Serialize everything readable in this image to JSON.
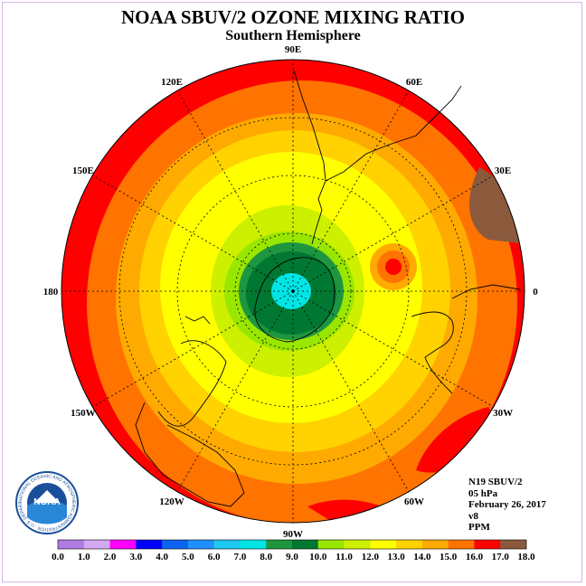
{
  "title": "NOAA SBUV/2 OZONE MIXING RATIO",
  "subtitle": "Southern Hemisphere",
  "longitude_labels": [
    {
      "text": "90W",
      "lon": -90
    },
    {
      "text": "60W",
      "lon": -60
    },
    {
      "text": "120W",
      "lon": -120
    },
    {
      "text": "30W",
      "lon": -30
    },
    {
      "text": "150W",
      "lon": -150
    },
    {
      "text": "0",
      "lon": 0
    },
    {
      "text": "180",
      "lon": 180
    },
    {
      "text": "30E",
      "lon": 30
    },
    {
      "text": "150E",
      "lon": 150
    },
    {
      "text": "60E",
      "lon": 60
    },
    {
      "text": "120E",
      "lon": 120
    },
    {
      "text": "90E",
      "lon": 90
    }
  ],
  "info": {
    "satellite": "N19 SBUV/2",
    "pressure": "05 hPa",
    "date": "February 26, 2017",
    "version": "v8",
    "units": "PPM"
  },
  "logo": {
    "text": "NOAA",
    "ring_text": "NATIONAL OCEANIC AND ATMOSPHERIC ADMINISTRATION · U.S. DEPARTMENT OF COMMERCE"
  },
  "colorbar": {
    "labels": [
      "0.0",
      "1.0",
      "2.0",
      "3.0",
      "4.0",
      "5.0",
      "6.0",
      "7.0",
      "8.0",
      "9.0",
      "10.0",
      "11.0",
      "12.0",
      "13.0",
      "14.0",
      "15.0",
      "16.0",
      "17.0",
      "18.0"
    ],
    "colors": [
      "#b07be0",
      "#d4a8f0",
      "#ff00ff",
      "#0000ff",
      "#0a64f0",
      "#1e90ff",
      "#1ec8f0",
      "#00e6e6",
      "#1e9640",
      "#007832",
      "#99e600",
      "#ccf000",
      "#ffff00",
      "#ffd200",
      "#ffaa00",
      "#ff7300",
      "#ff0000",
      "#8b5a3c"
    ]
  },
  "map_fields": {
    "levels": [
      17.0,
      16.0,
      15.0,
      14.0,
      13.0,
      12.0,
      11.0,
      10.0,
      9.0,
      8.0
    ]
  }
}
